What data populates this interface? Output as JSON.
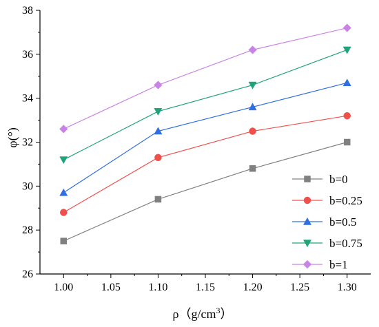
{
  "chart_data": {
    "type": "line",
    "x": [
      1.0,
      1.1,
      1.2,
      1.3
    ],
    "x_tick_labels": [
      "1.00",
      "1.05",
      "1.10",
      "1.15",
      "1.20",
      "1.25",
      "1.30"
    ],
    "y_tick_labels": [
      "26",
      "28",
      "30",
      "32",
      "34",
      "36",
      "38"
    ],
    "xlabel_main": "ρ（g/cm",
    "xlabel_sup": "3",
    "xlabel_end": "）",
    "ylabel": "φ(°)",
    "xlim": [
      0.975,
      1.325
    ],
    "ylim": [
      26,
      38
    ],
    "grid": false,
    "legend_position": "lower-right",
    "series": [
      {
        "name": "b=0",
        "values": [
          27.5,
          29.4,
          30.8,
          32.0
        ],
        "color": "#808080",
        "marker": "square"
      },
      {
        "name": "b=0.25",
        "values": [
          28.8,
          31.3,
          32.5,
          33.2
        ],
        "color": "#f0504c",
        "marker": "circle"
      },
      {
        "name": "b=0.5",
        "values": [
          29.7,
          32.5,
          33.6,
          34.7
        ],
        "color": "#2f6fe0",
        "marker": "triangle-up"
      },
      {
        "name": "b=0.75",
        "values": [
          31.2,
          33.4,
          34.6,
          36.2
        ],
        "color": "#1fa37a",
        "marker": "triangle-down"
      },
      {
        "name": "b=1",
        "values": [
          32.6,
          34.6,
          36.2,
          37.2
        ],
        "color": "#c983e6",
        "marker": "diamond"
      }
    ]
  }
}
